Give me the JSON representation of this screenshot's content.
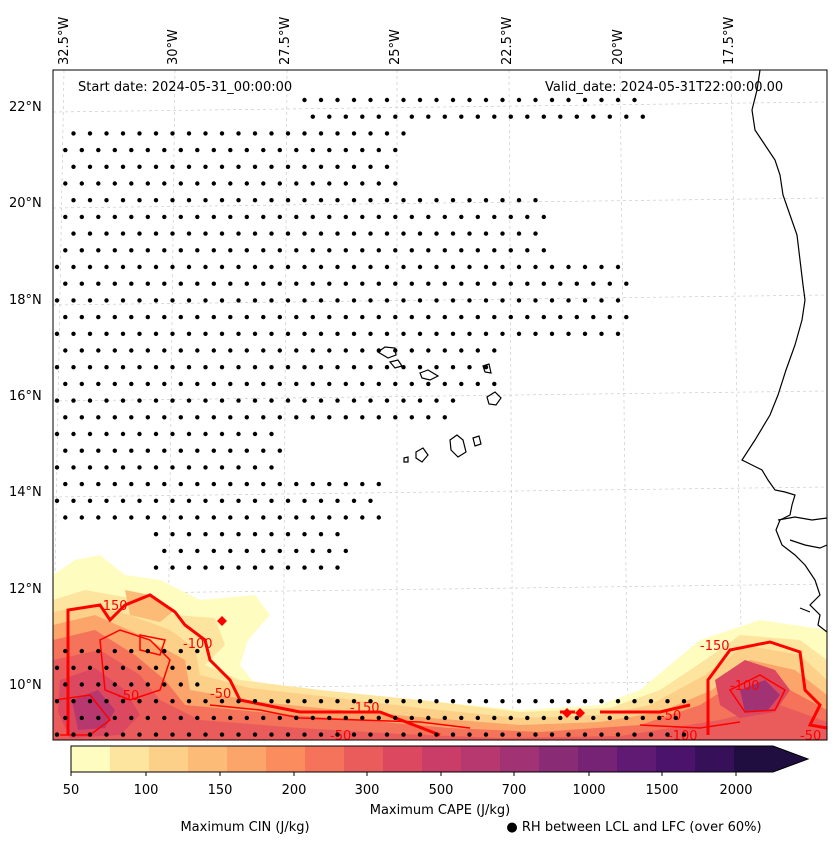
{
  "header": {
    "start_date": "Start date: 2024-05-31_00:00:00",
    "valid_date": "Valid_date: 2024-05-31T22:00:00.00"
  },
  "map": {
    "lon_ticks": [
      "32.5°W",
      "30°W",
      "27.5°W",
      "25°W",
      "22.5°W",
      "20°W",
      "17.5°W"
    ],
    "lat_ticks": [
      "22°N",
      "20°N",
      "18°N",
      "16°N",
      "14°N",
      "12°N",
      "10°N"
    ],
    "gridlines": "dashed",
    "cin_contour_labels": [
      "-150",
      "-50",
      "-100",
      "-50",
      "-150",
      "-50",
      "-100",
      "-150",
      "-50",
      "-50",
      "-100"
    ]
  },
  "colorbar": {
    "ticks": [
      "50",
      "100",
      "150",
      "200",
      "300",
      "500",
      "700",
      "1000",
      "1500",
      "2000"
    ],
    "label": "Maximum CAPE (J/kg)",
    "colors": [
      "#fffcc0",
      "#fde5a0",
      "#fdd08a",
      "#fdbb78",
      "#fca56a",
      "#fb8c5e",
      "#f5735a",
      "#ea5c5b",
      "#db4860",
      "#c93d68",
      "#b6386f",
      "#a13374",
      "#8a2b76",
      "#762376",
      "#611a73",
      "#4b136b",
      "#36115a",
      "#1f0e3f"
    ]
  },
  "legend": {
    "cin": "Maximum CIN (J/kg)",
    "rh": "● RH between LCL and LFC (over 60%)",
    "cin_color": "#ff0000"
  }
}
